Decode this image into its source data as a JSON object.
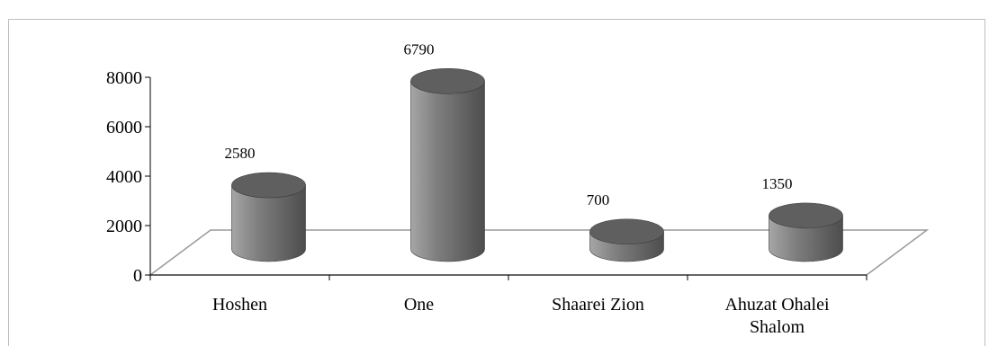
{
  "chart_data": {
    "type": "bar",
    "style": "3d-cylinder",
    "categories": [
      [
        "Hoshen"
      ],
      [
        "One"
      ],
      [
        "Shaarei Zion"
      ],
      [
        "Ahuzat Ohalei",
        "Shalom"
      ]
    ],
    "values": [
      2580,
      6790,
      700,
      1350
    ],
    "data_labels": [
      "2580",
      "6790",
      "700",
      "1350"
    ],
    "y_ticks": [
      "0",
      "2000",
      "4000",
      "6000",
      "8000"
    ],
    "ylim": [
      0,
      8000
    ],
    "title": "",
    "xlabel": "",
    "ylabel": "",
    "grid": false,
    "legend": "none",
    "colors": {
      "bar_light": "#a6a6a6",
      "bar_mid": "#7f7f7f",
      "bar_dark": "#4d4d4d",
      "bar_top": "#5f5f5f",
      "floor_line": "#9a9a9a",
      "border": "#bfbfbf"
    }
  }
}
